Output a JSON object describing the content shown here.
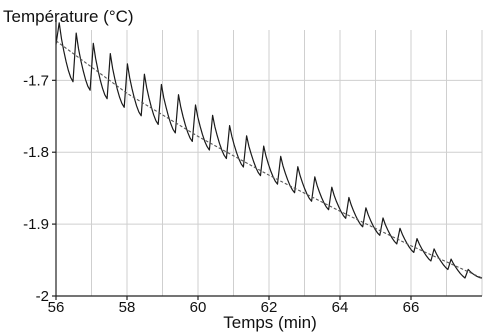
{
  "chart_data": {
    "type": "line",
    "ylabel": "Température (°C)",
    "xlabel": "Temps (min)",
    "xlim": [
      56,
      68
    ],
    "ylim": [
      -2.0,
      -1.63
    ],
    "x_ticks": [
      56,
      58,
      60,
      62,
      64,
      66
    ],
    "x_tick_labels": [
      "56",
      "58",
      "60",
      "62",
      "64",
      "66"
    ],
    "y_ticks": [
      -1.7,
      -1.8,
      -1.9,
      -2
    ],
    "y_tick_labels": [
      "-1.7",
      "-1.8",
      "-1.9",
      "-2"
    ],
    "grid": true,
    "series": [
      {
        "style": "oscillating",
        "color": "#1a1a1a",
        "cycle_start_time": 56.0,
        "cycle_period_min": 0.48,
        "peak_offset_min": 0.03,
        "cycle_count": 25,
        "baseline_start": -1.69,
        "baseline_end": -1.975,
        "amplitude_start": 0.07,
        "amplitude_end": 0.012,
        "initial_value": -1.65,
        "final_value": -1.975
      },
      {
        "style": "trend",
        "color": "#555555",
        "x": [
          56.0,
          58.0,
          60.0,
          62.0,
          64.0,
          66.0,
          68.0
        ],
        "y": [
          -1.645,
          -1.718,
          -1.778,
          -1.832,
          -1.882,
          -1.93,
          -1.975
        ]
      }
    ]
  }
}
